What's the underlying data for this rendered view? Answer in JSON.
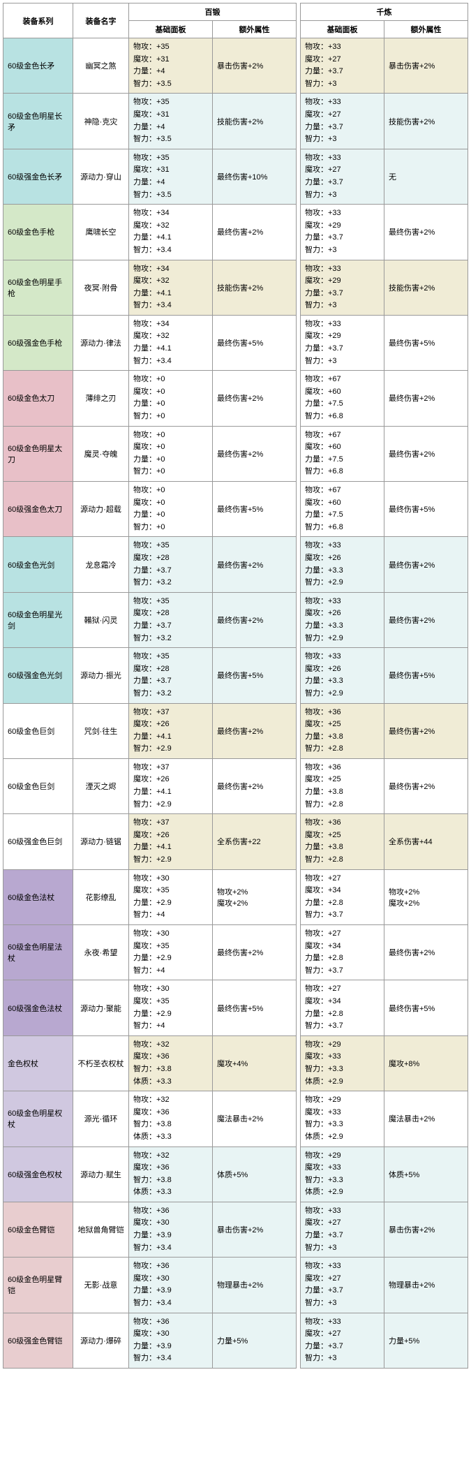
{
  "headers": {
    "series": "装备系列",
    "name": "装备名字",
    "group1": "百锻",
    "group2": "千炼",
    "base": "基础面板",
    "extra": "额外属性"
  },
  "colors": {
    "teal": "#b8e2e2",
    "green": "#d4e8c8",
    "pink": "#e8c0c8",
    "lav": "#d0c8e0",
    "purple": "#b8a8d0",
    "beige": "#f0ecd6",
    "rose": "#e8cdcf",
    "pale": "#e8f4f4",
    "white": "#ffffff"
  },
  "rows": [
    {
      "series": "60级金色长矛",
      "seriesColor": "teal",
      "name": "幽冥之煞",
      "b1": {
        "c": "beige",
        "t": "物攻：+35\n魔攻：+31\n力量：+4\n智力：+3.5"
      },
      "e1": {
        "c": "beige",
        "t": "暴击伤害+2%"
      },
      "b2": {
        "c": "beige",
        "t": "物攻：+33\n魔攻：+27\n力量：+3.7\n智力：+3"
      },
      "e2": {
        "c": "beige",
        "t": "暴击伤害+2%"
      }
    },
    {
      "series": "60级金色明星长矛",
      "seriesColor": "teal",
      "name": "神隐·克灾",
      "b1": {
        "c": "pale",
        "t": "物攻：+35\n魔攻：+31\n力量：+4\n智力：+3.5"
      },
      "e1": {
        "c": "pale",
        "t": "技能伤害+2%"
      },
      "b2": {
        "c": "pale",
        "t": "物攻：+33\n魔攻：+27\n力量：+3.7\n智力：+3"
      },
      "e2": {
        "c": "pale",
        "t": "技能伤害+2%"
      }
    },
    {
      "series": "60级强金色长矛",
      "seriesColor": "teal",
      "name": "源动力·穿山",
      "b1": {
        "c": "pale",
        "t": "物攻：+35\n魔攻：+31\n力量：+4\n智力：+3.5"
      },
      "e1": {
        "c": "pale",
        "t": "最终伤害+10%"
      },
      "b2": {
        "c": "pale",
        "t": "物攻：+33\n魔攻：+27\n力量：+3.7\n智力：+3"
      },
      "e2": {
        "c": "pale",
        "t": "无"
      }
    },
    {
      "series": "60级金色手枪",
      "seriesColor": "green",
      "name": "鹰啸长空",
      "b1": {
        "c": "white",
        "t": "物攻：+34\n魔攻：+32\n力量：+4.1\n智力：+3.4"
      },
      "e1": {
        "c": "white",
        "t": "最终伤害+2%"
      },
      "b2": {
        "c": "white",
        "t": "物攻：+33\n魔攻：+29\n力量：+3.7\n智力：+3"
      },
      "e2": {
        "c": "white",
        "t": "最终伤害+2%"
      }
    },
    {
      "series": "60级金色明星手枪",
      "seriesColor": "green",
      "name": "夜冥·附骨",
      "b1": {
        "c": "beige",
        "t": "物攻：+34\n魔攻：+32\n力量：+4.1\n智力：+3.4"
      },
      "e1": {
        "c": "beige",
        "t": "技能伤害+2%"
      },
      "b2": {
        "c": "beige",
        "t": "物攻：+33\n魔攻：+29\n力量：+3.7\n智力：+3"
      },
      "e2": {
        "c": "beige",
        "t": "技能伤害+2%"
      }
    },
    {
      "series": "60级强金色手枪",
      "seriesColor": "green",
      "name": "源动力·律法",
      "b1": {
        "c": "white",
        "t": "物攻：+34\n魔攻：+32\n力量：+4.1\n智力：+3.4"
      },
      "e1": {
        "c": "white",
        "t": "最终伤害+5%"
      },
      "b2": {
        "c": "white",
        "t": "物攻：+33\n魔攻：+29\n力量：+3.7\n智力：+3"
      },
      "e2": {
        "c": "white",
        "t": "最终伤害+5%"
      }
    },
    {
      "series": "60级金色太刀",
      "seriesColor": "pink",
      "name": "薄绯之刃",
      "b1": {
        "c": "white",
        "t": "物攻：+0\n魔攻：+0\n力量：+0\n智力：+0"
      },
      "e1": {
        "c": "white",
        "t": "最终伤害+2%"
      },
      "b2": {
        "c": "white",
        "t": "物攻：+67\n魔攻：+60\n力量：+7.5\n智力：+6.8"
      },
      "e2": {
        "c": "white",
        "t": "最终伤害+2%"
      }
    },
    {
      "series": "60级金色明星太刀",
      "seriesColor": "pink",
      "name": "魔灵·夺魄",
      "b1": {
        "c": "white",
        "t": "物攻：+0\n魔攻：+0\n力量：+0\n智力：+0"
      },
      "e1": {
        "c": "white",
        "t": "最终伤害+2%"
      },
      "b2": {
        "c": "white",
        "t": "物攻：+67\n魔攻：+60\n力量：+7.5\n智力：+6.8"
      },
      "e2": {
        "c": "white",
        "t": "最终伤害+2%"
      }
    },
    {
      "series": "60级强金色太刀",
      "seriesColor": "pink",
      "name": "源动力·超载",
      "b1": {
        "c": "white",
        "t": "物攻：+0\n魔攻：+0\n力量：+0\n智力：+0"
      },
      "e1": {
        "c": "white",
        "t": "最终伤害+5%"
      },
      "b2": {
        "c": "white",
        "t": "物攻：+67\n魔攻：+60\n力量：+7.5\n智力：+6.8"
      },
      "e2": {
        "c": "white",
        "t": "最终伤害+5%"
      }
    },
    {
      "series": "60级金色光剑",
      "seriesColor": "teal",
      "name": "龙息霜冷",
      "b1": {
        "c": "pale",
        "t": "物攻：+35\n魔攻：+28\n力量：+3.7\n智力：+3.2"
      },
      "e1": {
        "c": "pale",
        "t": "最终伤害+2%"
      },
      "b2": {
        "c": "pale",
        "t": "物攻：+33\n魔攻：+26\n力量：+3.3\n智力：+2.9"
      },
      "e2": {
        "c": "pale",
        "t": "最终伤害+2%"
      }
    },
    {
      "series": "60级金色明星光剑",
      "seriesColor": "teal",
      "name": "鞴狱·闪灵",
      "b1": {
        "c": "pale",
        "t": "物攻：+35\n魔攻：+28\n力量：+3.7\n智力：+3.2"
      },
      "e1": {
        "c": "pale",
        "t": "最终伤害+2%"
      },
      "b2": {
        "c": "pale",
        "t": "物攻：+33\n魔攻：+26\n力量：+3.3\n智力：+2.9"
      },
      "e2": {
        "c": "pale",
        "t": "最终伤害+2%"
      }
    },
    {
      "series": "60级强金色光剑",
      "seriesColor": "teal",
      "name": "源动力·振光",
      "b1": {
        "c": "pale",
        "t": "物攻：+35\n魔攻：+28\n力量：+3.7\n智力：+3.2"
      },
      "e1": {
        "c": "pale",
        "t": "最终伤害+5%"
      },
      "b2": {
        "c": "pale",
        "t": "物攻：+33\n魔攻：+26\n力量：+3.3\n智力：+2.9"
      },
      "e2": {
        "c": "pale",
        "t": "最终伤害+5%"
      }
    },
    {
      "series": "60级金色巨剑",
      "seriesColor": "white",
      "name": "咒剑·往生",
      "b1": {
        "c": "beige",
        "t": "物攻：+37\n魔攻：+26\n力量：+4.1\n智力：+2.9"
      },
      "e1": {
        "c": "beige",
        "t": "最终伤害+2%"
      },
      "b2": {
        "c": "beige",
        "t": "物攻：+36\n魔攻：+25\n力量：+3.8\n智力：+2.8"
      },
      "e2": {
        "c": "beige",
        "t": "最终伤害+2%"
      }
    },
    {
      "series": "60级金色巨剑",
      "seriesColor": "white",
      "name": "湮灭之烬",
      "b1": {
        "c": "white",
        "t": "物攻：+37\n魔攻：+26\n力量：+4.1\n智力：+2.9"
      },
      "e1": {
        "c": "white",
        "t": "最终伤害+2%"
      },
      "b2": {
        "c": "white",
        "t": "物攻：+36\n魔攻：+25\n力量：+3.8\n智力：+2.8"
      },
      "e2": {
        "c": "white",
        "t": "最终伤害+2%"
      }
    },
    {
      "series": "60级强金色巨剑",
      "seriesColor": "white",
      "name": "源动力·链锯",
      "b1": {
        "c": "beige",
        "t": "物攻：+37\n魔攻：+26\n力量：+4.1\n智力：+2.9"
      },
      "e1": {
        "c": "beige",
        "t": "全系伤害+22"
      },
      "b2": {
        "c": "beige",
        "t": "物攻：+36\n魔攻：+25\n力量：+3.8\n智力：+2.8"
      },
      "e2": {
        "c": "beige",
        "t": "全系伤害+44"
      }
    },
    {
      "series": "60级金色法杖",
      "seriesColor": "purple",
      "name": "花影缭乱",
      "b1": {
        "c": "white",
        "t": "物攻：+30\n魔攻：+35\n力量：+2.9\n智力：+4"
      },
      "e1": {
        "c": "white",
        "t": "物攻+2%\n魔攻+2%"
      },
      "b2": {
        "c": "white",
        "t": "物攻：+27\n魔攻：+34\n力量：+2.8\n智力：+3.7"
      },
      "e2": {
        "c": "white",
        "t": "物攻+2%\n魔攻+2%"
      }
    },
    {
      "series": "60级金色明星法杖",
      "seriesColor": "purple",
      "name": "永夜·希望",
      "b1": {
        "c": "white",
        "t": "物攻：+30\n魔攻：+35\n力量：+2.9\n智力：+4"
      },
      "e1": {
        "c": "white",
        "t": "最终伤害+2%"
      },
      "b2": {
        "c": "white",
        "t": "物攻：+27\n魔攻：+34\n力量：+2.8\n智力：+3.7"
      },
      "e2": {
        "c": "white",
        "t": "最终伤害+2%"
      }
    },
    {
      "series": "60级强金色法杖",
      "seriesColor": "purple",
      "name": "源动力·聚能",
      "b1": {
        "c": "white",
        "t": "物攻：+30\n魔攻：+35\n力量：+2.9\n智力：+4"
      },
      "e1": {
        "c": "white",
        "t": "最终伤害+5%"
      },
      "b2": {
        "c": "white",
        "t": "物攻：+27\n魔攻：+34\n力量：+2.8\n智力：+3.7"
      },
      "e2": {
        "c": "white",
        "t": "最终伤害+5%"
      }
    },
    {
      "series": "金色权杖",
      "seriesColor": "lav",
      "name": "不朽圣衣权杖",
      "b1": {
        "c": "beige",
        "t": "物攻：+32\n魔攻：+36\n智力：+3.8\n体质：+3.3"
      },
      "e1": {
        "c": "beige",
        "t": "魔攻+4%"
      },
      "b2": {
        "c": "beige",
        "t": "物攻：+29\n魔攻：+33\n智力：+3.3\n体质：+2.9"
      },
      "e2": {
        "c": "beige",
        "t": "魔攻+8%"
      }
    },
    {
      "series": "60级金色明星权杖",
      "seriesColor": "lav",
      "name": "源光·循环",
      "b1": {
        "c": "white",
        "t": "物攻：+32\n魔攻：+36\n智力：+3.8\n体质：+3.3"
      },
      "e1": {
        "c": "white",
        "t": "魔法暴击+2%"
      },
      "b2": {
        "c": "white",
        "t": "物攻：+29\n魔攻：+33\n智力：+3.3\n体质：+2.9"
      },
      "e2": {
        "c": "white",
        "t": "魔法暴击+2%"
      }
    },
    {
      "series": "60级强金色权杖",
      "seriesColor": "lav",
      "name": "源动力·赋生",
      "b1": {
        "c": "pale",
        "t": "物攻：+32\n魔攻：+36\n智力：+3.8\n体质：+3.3"
      },
      "e1": {
        "c": "pale",
        "t": "体质+5%"
      },
      "b2": {
        "c": "pale",
        "t": "物攻：+29\n魔攻：+33\n智力：+3.3\n体质：+2.9"
      },
      "e2": {
        "c": "pale",
        "t": "体质+5%"
      }
    },
    {
      "series": "60级金色臂铠",
      "seriesColor": "rose",
      "name": "地狱兽角臂铠",
      "b1": {
        "c": "pale",
        "t": "物攻：+36\n魔攻：+30\n力量：+3.9\n智力：+3.4"
      },
      "e1": {
        "c": "pale",
        "t": "暴击伤害+2%"
      },
      "b2": {
        "c": "pale",
        "t": "物攻：+33\n魔攻：+27\n力量：+3.7\n智力：+3"
      },
      "e2": {
        "c": "pale",
        "t": "暴击伤害+2%"
      }
    },
    {
      "series": "60级金色明星臂铠",
      "seriesColor": "rose",
      "name": "无影·战意",
      "b1": {
        "c": "pale",
        "t": "物攻：+36\n魔攻：+30\n力量：+3.9\n智力：+3.4"
      },
      "e1": {
        "c": "pale",
        "t": "物理暴击+2%"
      },
      "b2": {
        "c": "pale",
        "t": "物攻：+33\n魔攻：+27\n力量：+3.7\n智力：+3"
      },
      "e2": {
        "c": "pale",
        "t": "物理暴击+2%"
      }
    },
    {
      "series": "60级强金色臂铠",
      "seriesColor": "rose",
      "name": "源动力·爆碎",
      "b1": {
        "c": "pale",
        "t": "物攻：+36\n魔攻：+30\n力量：+3.9\n智力：+3.4"
      },
      "e1": {
        "c": "pale",
        "t": "力量+5%"
      },
      "b2": {
        "c": "pale",
        "t": "物攻：+33\n魔攻：+27\n力量：+3.7\n智力：+3"
      },
      "e2": {
        "c": "pale",
        "t": "力量+5%"
      }
    }
  ]
}
